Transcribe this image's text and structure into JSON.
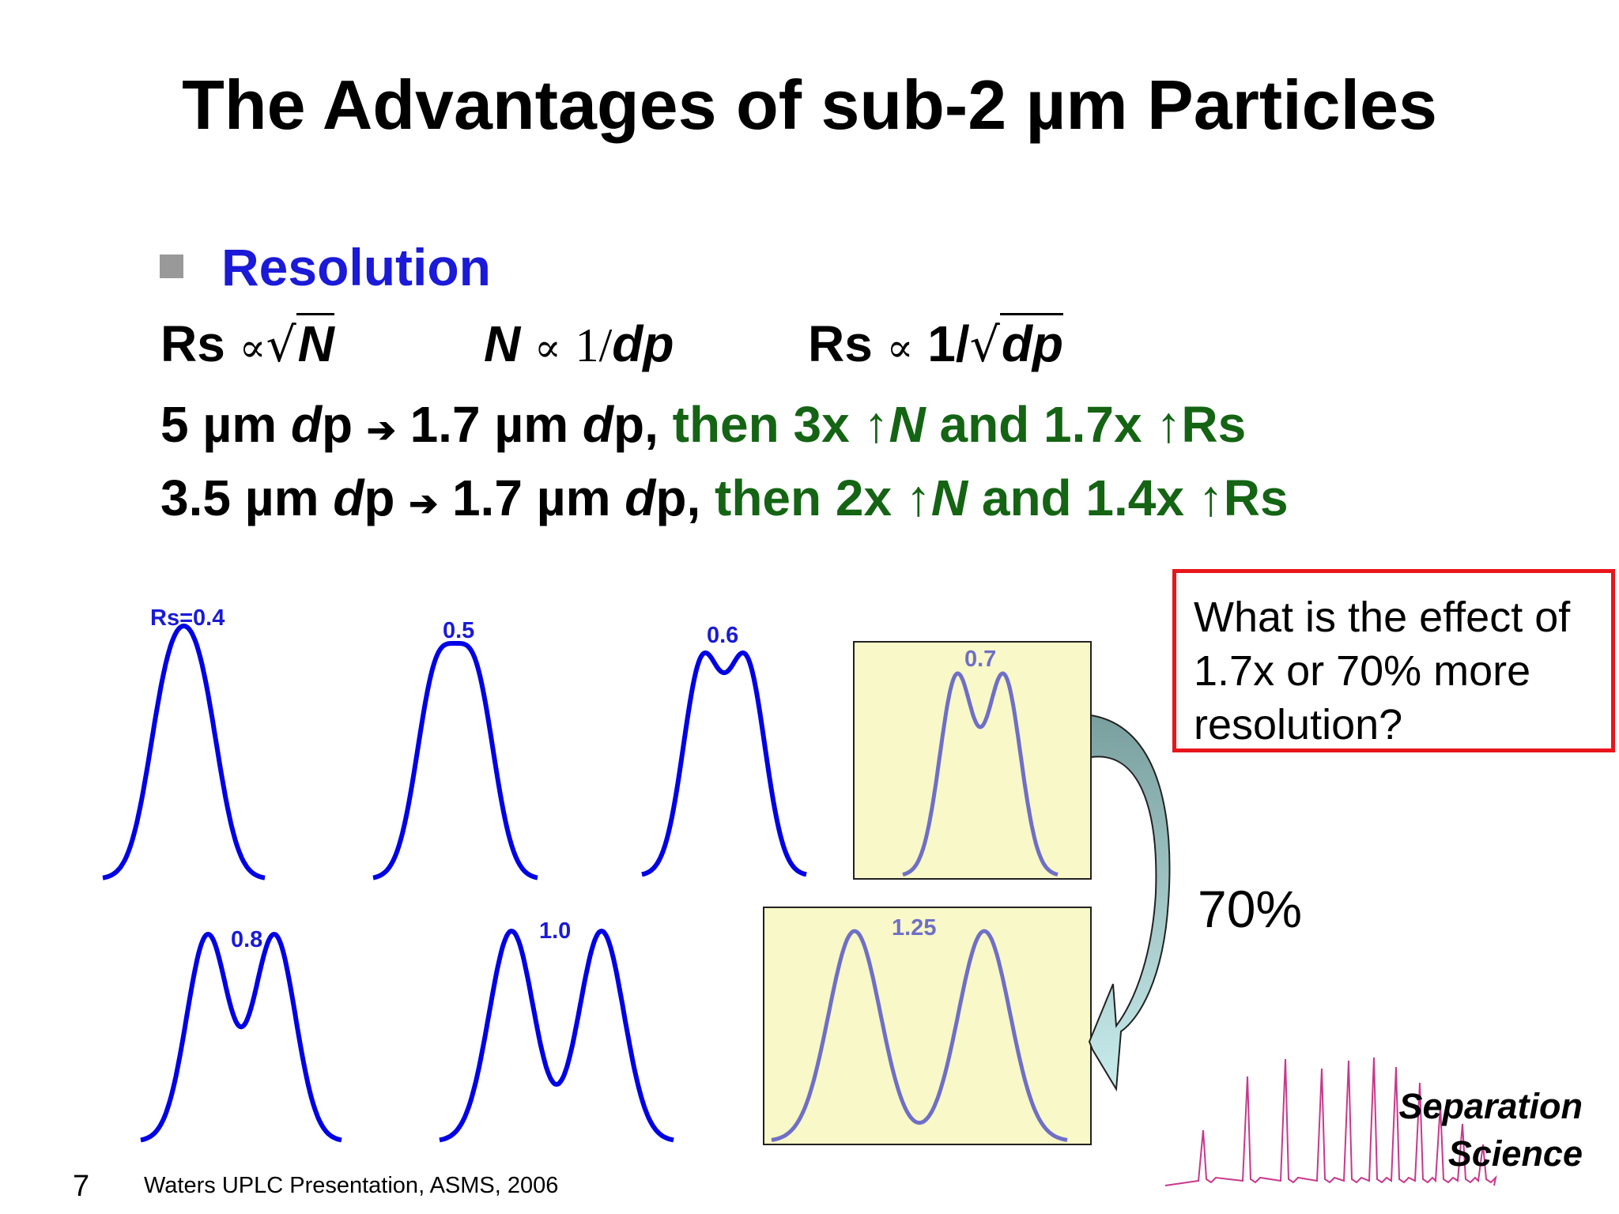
{
  "slide": {
    "title": "The Advantages of sub-2 µm Particles",
    "bullet": "Resolution",
    "equations": {
      "eq1_lhs": "Rs",
      "prop": "∝",
      "N": "N",
      "eq2_rhs_num": "1/",
      "dp": "dp",
      "eq3_lhs": "Rs",
      "eq3_one": "1/"
    },
    "line1": {
      "a": "5 µm ",
      "d1": "d",
      "p1": "p ",
      "arrow": "➔",
      "b": " 1.7 µm ",
      "d2": "d",
      "p2": "p, ",
      "g1": "then 3x ↑",
      "gN": "N",
      "g2": " and 1.7x ↑Rs"
    },
    "line2": {
      "a": "3.5 µm ",
      "d1": "d",
      "p1": "p ",
      "arrow": "➔",
      "b": " 1.7 µm ",
      "d2": "d",
      "p2": "p, ",
      "g1": "then 2x ↑",
      "gN": "N",
      "g2": " and 1.4x ↑Rs"
    },
    "peaks": [
      {
        "label": "Rs=0.4",
        "rs": 0.4
      },
      {
        "label": "0.5",
        "rs": 0.5
      },
      {
        "label": "0.6",
        "rs": 0.6
      },
      {
        "label": "0.7",
        "rs": 0.7
      },
      {
        "label": "0.8",
        "rs": 0.8
      },
      {
        "label": "1.0",
        "rs": 1.0
      },
      {
        "label": "1.25",
        "rs": 1.25
      }
    ],
    "callout": "What is the effect of 1.7x or 70% more resolution?",
    "arrow_label": "70%",
    "footer_number": "7",
    "footer_text": "Waters UPLC Presentation, ASMS, 2006",
    "logo": {
      "line1": "Separation",
      "line2": "Science"
    },
    "colors": {
      "title": "#000000",
      "bullet": "#1a1ad8",
      "green_text": "#146414",
      "peak_blue": "#0000e6",
      "peak_highlight": "#6f6fc8",
      "highlight_box": "#f8f8c8",
      "callout_border": "#e8161b",
      "logo_trace": "#c8388c"
    }
  }
}
